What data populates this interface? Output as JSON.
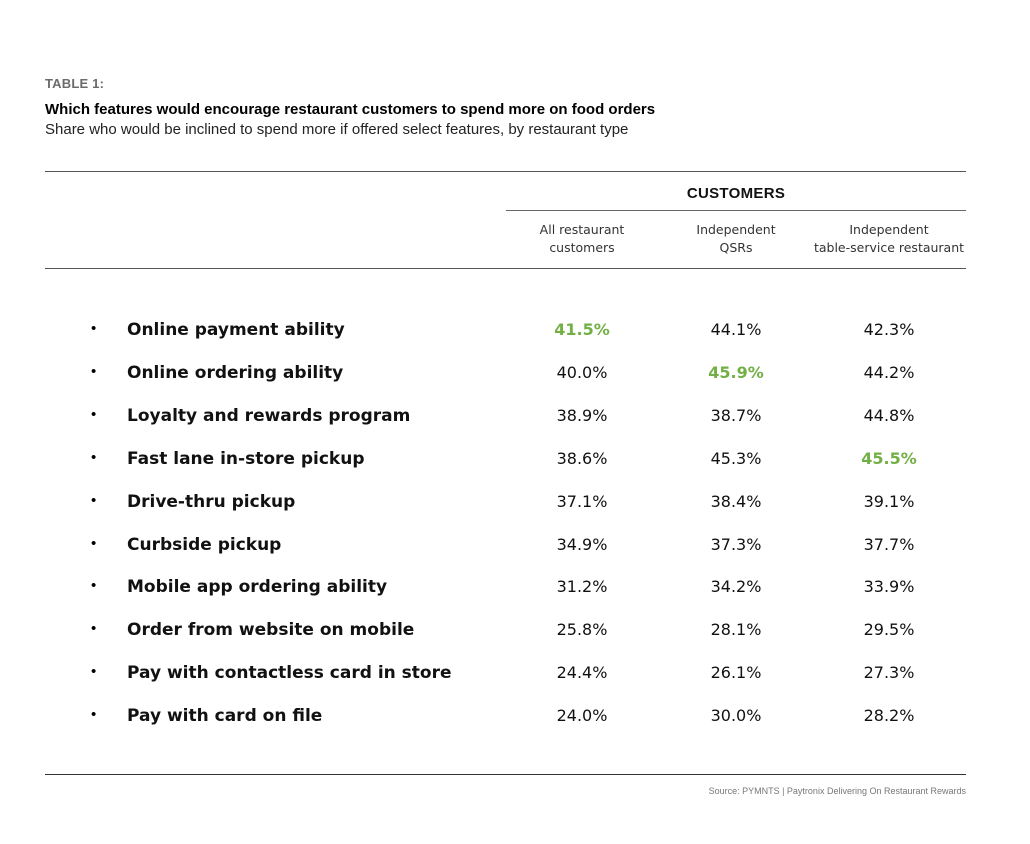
{
  "header": {
    "table_label": "TABLE 1:",
    "title": "Which features would encourage restaurant customers to spend more on food orders",
    "subtitle": "Share who would be inclined to spend more if offered select features, by restaurant type"
  },
  "chart_data": {
    "type": "table",
    "group_title": "CUSTOMERS",
    "columns": [
      {
        "line1": "All restaurant",
        "line2": "customers"
      },
      {
        "line1": "Independent",
        "line2": "QSRs"
      },
      {
        "line1": "Independent",
        "line2": "table-service restaurant"
      }
    ],
    "bullet": "•",
    "rows": [
      {
        "feature": "Online payment ability",
        "values": [
          "41.5%",
          "44.1%",
          "42.3%"
        ],
        "highlight": [
          true,
          false,
          false
        ]
      },
      {
        "feature": "Online ordering ability",
        "values": [
          "40.0%",
          "45.9%",
          "44.2%"
        ],
        "highlight": [
          false,
          true,
          false
        ]
      },
      {
        "feature": "Loyalty and rewards program",
        "values": [
          "38.9%",
          "38.7%",
          "44.8%"
        ],
        "highlight": [
          false,
          false,
          false
        ]
      },
      {
        "feature": "Fast lane in-store pickup",
        "values": [
          "38.6%",
          "45.3%",
          "45.5%"
        ],
        "highlight": [
          false,
          false,
          true
        ]
      },
      {
        "feature": "Drive-thru pickup",
        "values": [
          "37.1%",
          "38.4%",
          "39.1%"
        ],
        "highlight": [
          false,
          false,
          false
        ]
      },
      {
        "feature": "Curbside pickup",
        "values": [
          "34.9%",
          "37.3%",
          "37.7%"
        ],
        "highlight": [
          false,
          false,
          false
        ]
      },
      {
        "feature": "Mobile app ordering ability",
        "values": [
          "31.2%",
          "34.2%",
          "33.9%"
        ],
        "highlight": [
          false,
          false,
          false
        ]
      },
      {
        "feature": "Order from website on mobile",
        "values": [
          "25.8%",
          "28.1%",
          "29.5%"
        ],
        "highlight": [
          false,
          false,
          false
        ]
      },
      {
        "feature": "Pay with contactless card in store",
        "values": [
          "24.4%",
          "26.1%",
          "27.3%"
        ],
        "highlight": [
          false,
          false,
          false
        ]
      },
      {
        "feature": "Pay with card on file",
        "values": [
          "24.0%",
          "30.0%",
          "28.2%"
        ],
        "highlight": [
          false,
          false,
          false
        ]
      }
    ],
    "highlight_color": "#72b045"
  },
  "footer": {
    "source": "Source: PYMNTS | Paytronix Delivering On Restaurant Rewards"
  }
}
